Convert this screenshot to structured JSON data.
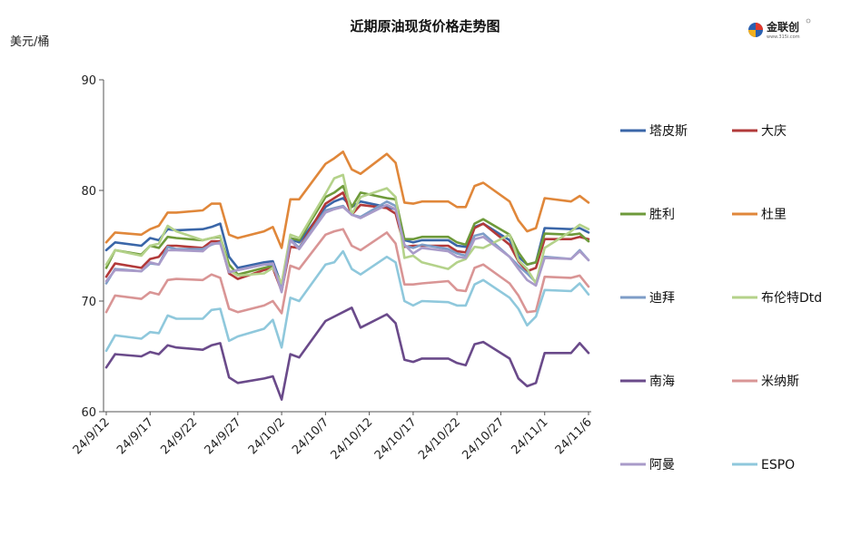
{
  "chart_data": {
    "type": "line",
    "title": "近期原油现货价格走势图",
    "unit_label": "美元/桶",
    "ylim": [
      60,
      90
    ],
    "yticks": [
      60,
      70,
      80,
      90
    ],
    "grid": false,
    "legend_position": "right",
    "x_tick_labels": [
      "24/9/12",
      "24/9/17",
      "24/9/22",
      "24/9/27",
      "24/10/2",
      "24/10/7",
      "24/10/12",
      "24/10/17",
      "24/10/22",
      "24/10/27",
      "24/11/1",
      "24/11/6"
    ],
    "x_dates": [
      "2024-09-12",
      "2024-09-13",
      "2024-09-16",
      "2024-09-17",
      "2024-09-18",
      "2024-09-19",
      "2024-09-20",
      "2024-09-23",
      "2024-09-24",
      "2024-09-25",
      "2024-09-26",
      "2024-09-27",
      "2024-09-30",
      "2024-10-01",
      "2024-10-02",
      "2024-10-03",
      "2024-10-04",
      "2024-10-07",
      "2024-10-08",
      "2024-10-09",
      "2024-10-10",
      "2024-10-11",
      "2024-10-14",
      "2024-10-15",
      "2024-10-16",
      "2024-10-17",
      "2024-10-18",
      "2024-10-21",
      "2024-10-22",
      "2024-10-23",
      "2024-10-24",
      "2024-10-25",
      "2024-10-28",
      "2024-10-29",
      "2024-10-30",
      "2024-10-31",
      "2024-11-01",
      "2024-11-04",
      "2024-11-05",
      "2024-11-06"
    ],
    "series": [
      {
        "name": "塔皮斯",
        "color": "#3a66a8",
        "values": [
          74.6,
          75.3,
          75.0,
          75.7,
          75.5,
          76.5,
          76.4,
          76.5,
          76.7,
          77.0,
          74.0,
          73.0,
          73.5,
          73.6,
          71.4,
          75.6,
          75.3,
          78.5,
          79.0,
          79.3,
          78.5,
          79.0,
          78.5,
          78.3,
          75.5,
          75.3,
          75.5,
          75.5,
          75.0,
          74.9,
          76.7,
          77.0,
          75.5,
          74.0,
          73.3,
          73.5,
          76.6,
          76.5,
          76.6,
          76.2
        ]
      },
      {
        "name": "大庆",
        "color": "#b23a3a",
        "values": [
          72.2,
          73.4,
          73.0,
          73.8,
          74.0,
          75.0,
          75.0,
          74.8,
          75.4,
          75.4,
          72.5,
          72.0,
          72.8,
          73.0,
          70.9,
          74.9,
          74.8,
          78.8,
          79.3,
          79.8,
          77.8,
          78.7,
          78.4,
          77.9,
          74.9,
          75.0,
          75.0,
          75.0,
          74.5,
          74.4,
          76.6,
          77.0,
          75.1,
          73.6,
          72.7,
          73.0,
          75.6,
          75.6,
          75.8,
          75.6
        ]
      },
      {
        "name": "胜利",
        "color": "#6e9a3a",
        "values": [
          73.0,
          74.6,
          74.2,
          75.0,
          74.8,
          75.8,
          75.7,
          75.5,
          75.7,
          75.8,
          73.3,
          72.4,
          73.0,
          73.2,
          71.5,
          75.7,
          75.5,
          79.4,
          79.8,
          80.4,
          78.5,
          79.8,
          79.3,
          79.2,
          75.6,
          75.6,
          75.8,
          75.8,
          75.3,
          75.1,
          77.0,
          77.4,
          76.0,
          74.4,
          73.3,
          73.5,
          76.1,
          76.0,
          76.1,
          75.4
        ]
      },
      {
        "name": "杜里",
        "color": "#e0873a",
        "values": [
          75.3,
          76.2,
          76.0,
          76.5,
          76.8,
          78.0,
          78.0,
          78.2,
          78.8,
          78.8,
          76.0,
          75.7,
          76.3,
          76.7,
          74.8,
          79.2,
          79.2,
          82.4,
          82.9,
          83.5,
          81.9,
          81.5,
          83.3,
          82.5,
          78.9,
          78.8,
          79.0,
          79.0,
          78.5,
          78.5,
          80.4,
          80.7,
          79.0,
          77.3,
          76.3,
          76.6,
          79.3,
          79.0,
          79.5,
          78.9
        ]
      },
      {
        "name": "迪拜",
        "color": "#7e9dc7",
        "values": [
          71.6,
          72.9,
          72.7,
          73.4,
          73.3,
          74.9,
          74.7,
          74.7,
          75.1,
          75.3,
          72.6,
          72.8,
          73.3,
          73.3,
          71.3,
          75.6,
          74.8,
          78.2,
          78.4,
          78.6,
          77.8,
          77.6,
          79.0,
          78.6,
          75.0,
          74.8,
          75.1,
          74.7,
          74.3,
          74.1,
          75.9,
          76.1,
          74.0,
          73.2,
          72.5,
          71.7,
          74.0,
          73.8,
          74.6,
          73.7
        ]
      },
      {
        "name": "布伦特Dtd",
        "color": "#b4d28a",
        "values": [
          73.3,
          74.6,
          74.1,
          75.0,
          75.2,
          76.8,
          76.3,
          75.5,
          75.7,
          75.9,
          72.8,
          72.3,
          72.5,
          73.0,
          71.6,
          76.0,
          75.7,
          79.7,
          81.1,
          81.4,
          77.8,
          79.4,
          80.2,
          79.4,
          73.9,
          74.1,
          73.5,
          72.9,
          73.5,
          73.8,
          74.9,
          74.8,
          76.0,
          73.7,
          72.9,
          71.6,
          74.8,
          76.3,
          76.9,
          76.5
        ]
      },
      {
        "name": "南海",
        "color": "#6a4a8a",
        "values": [
          64.0,
          65.2,
          65.0,
          65.4,
          65.2,
          66.0,
          65.8,
          65.6,
          66.0,
          66.2,
          63.1,
          62.6,
          63.0,
          63.2,
          61.1,
          65.2,
          64.9,
          68.2,
          68.6,
          69.0,
          69.4,
          67.6,
          68.8,
          68.0,
          64.7,
          64.5,
          64.8,
          64.8,
          64.4,
          64.2,
          66.1,
          66.3,
          64.8,
          63.0,
          62.3,
          62.6,
          65.3,
          65.3,
          66.2,
          65.3
        ]
      },
      {
        "name": "米纳斯",
        "color": "#d99595",
        "values": [
          69.0,
          70.5,
          70.2,
          70.8,
          70.6,
          71.9,
          72.0,
          71.9,
          72.4,
          72.1,
          69.3,
          69.0,
          69.6,
          70.0,
          68.9,
          73.2,
          72.9,
          76.0,
          76.3,
          76.5,
          75.0,
          74.6,
          76.2,
          75.2,
          71.5,
          71.5,
          71.6,
          71.8,
          71.0,
          70.9,
          73.0,
          73.3,
          71.6,
          70.5,
          69.0,
          69.1,
          72.2,
          72.1,
          72.3,
          71.3
        ]
      },
      {
        "name": "阿曼",
        "color": "#a99bc9",
        "values": [
          71.8,
          72.8,
          72.7,
          73.5,
          73.3,
          74.6,
          74.6,
          74.5,
          75.2,
          75.2,
          72.6,
          72.8,
          73.3,
          73.4,
          70.8,
          75.5,
          74.7,
          78.0,
          78.3,
          78.5,
          77.8,
          77.5,
          78.7,
          78.3,
          75.1,
          74.3,
          74.8,
          74.5,
          74.0,
          73.9,
          75.6,
          75.8,
          74.0,
          72.9,
          71.9,
          71.4,
          73.9,
          73.8,
          74.5,
          73.7
        ]
      },
      {
        "name": "ESPO",
        "color": "#8fc8dc",
        "values": [
          65.5,
          66.9,
          66.6,
          67.2,
          67.1,
          68.7,
          68.4,
          68.4,
          69.2,
          69.3,
          66.4,
          66.8,
          67.5,
          68.3,
          65.8,
          70.3,
          70.0,
          73.3,
          73.5,
          74.5,
          72.9,
          72.4,
          74.0,
          73.5,
          70.0,
          69.6,
          70.0,
          69.9,
          69.6,
          69.6,
          71.5,
          71.9,
          70.3,
          69.3,
          67.8,
          68.6,
          71.0,
          70.9,
          71.6,
          70.6
        ]
      }
    ]
  },
  "logo": {
    "text": "金联创",
    "sub": "www.315i.com"
  }
}
